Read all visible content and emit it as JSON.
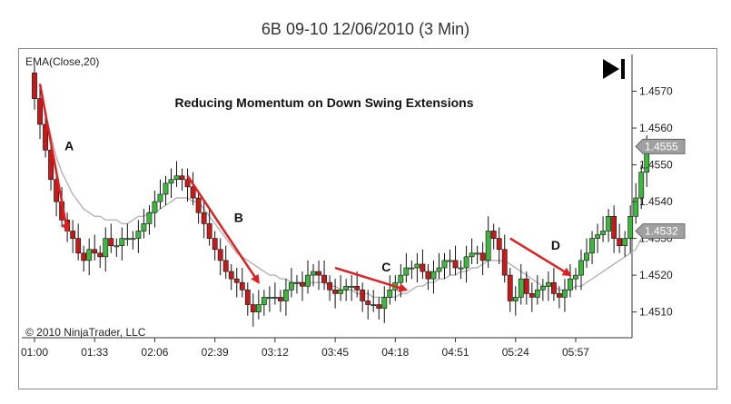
{
  "title": "6B 09-10  12/06/2010 (3 Min)",
  "indicator_label": "EMA(Close,20)",
  "chart_annotation": "Reducing Momentum on Down Swing Extensions",
  "copyright": "© 2010 NinjaTrader, LLC",
  "icons": {
    "playback": "skip-to-end-icon"
  },
  "colors": {
    "up": "#3db83d",
    "down": "#c41a1a",
    "arrow": "#e02020",
    "ema": "#b4b4b4",
    "badge": "#a0a0a0"
  },
  "chart_data": {
    "type": "candlestick",
    "x_tick_labels": [
      "01:00",
      "01:33",
      "02:06",
      "02:39",
      "03:12",
      "03:45",
      "04:18",
      "04:51",
      "05:24",
      "05:57"
    ],
    "y_tick_labels": [
      "1.4510",
      "1.4520",
      "1.4530",
      "1.4540",
      "1.4550",
      "1.4560",
      "1.4570"
    ],
    "y_ticks": [
      1.451,
      1.452,
      1.453,
      1.454,
      1.455,
      1.456,
      1.457
    ],
    "ylim": [
      1.4503,
      1.458
    ],
    "bars_per_label": 11,
    "price_badges": [
      {
        "text": "1.4555",
        "value": 1.4555
      },
      {
        "text": "1.4532",
        "value": 1.4532
      }
    ],
    "annotations": [
      {
        "label": "A",
        "bar_range": [
          1,
          6
        ],
        "price_range": [
          1.4572,
          1.4532
        ]
      },
      {
        "label": "B",
        "bar_range": [
          28,
          41
        ],
        "price_range": [
          1.4547,
          1.4518
        ]
      },
      {
        "label": "C",
        "bar_range": [
          55,
          68
        ],
        "price_range": [
          1.4522,
          1.4516
        ]
      },
      {
        "label": "D",
        "bar_range": [
          87,
          98
        ],
        "price_range": [
          1.453,
          1.452
        ]
      }
    ],
    "ema_series": {
      "name": "EMA(Close,20)",
      "start_bar": 1,
      "values": [
        1.457,
        1.4564,
        1.4558,
        1.4552,
        1.4548,
        1.4545,
        1.4542,
        1.454,
        1.4538,
        1.4537,
        1.4536,
        1.4536,
        1.4535,
        1.4535,
        1.4535,
        1.4534,
        1.4534,
        1.4535,
        1.4536,
        1.4536,
        1.4537,
        1.4537,
        1.4538,
        1.4539,
        1.454,
        1.4541,
        1.4541,
        1.4541,
        1.454,
        1.454,
        1.4538,
        1.4536,
        1.4534,
        1.4532,
        1.453,
        1.4528,
        1.4526,
        1.4525,
        1.4524,
        1.4523,
        1.4522,
        1.4521,
        1.452,
        1.452,
        1.4519,
        1.4519,
        1.4518,
        1.4518,
        1.4518,
        1.4518,
        1.4518,
        1.4518,
        1.4518,
        1.4517,
        1.4517,
        1.4516,
        1.4516,
        1.4516,
        1.4515,
        1.4515,
        1.4515,
        1.4514,
        1.4514,
        1.4514,
        1.4514,
        1.4514,
        1.4515,
        1.4515,
        1.4516,
        1.4517,
        1.4517,
        1.4518,
        1.4518,
        1.4519,
        1.4519,
        1.452,
        1.452,
        1.4521,
        1.4521,
        1.4522,
        1.4522,
        1.4523,
        1.4524,
        1.4524,
        1.4524,
        1.4524,
        1.4523,
        1.4522,
        1.4521,
        1.452,
        1.4519,
        1.4518,
        1.4517,
        1.4517,
        1.4517,
        1.4516,
        1.4516,
        1.4516,
        1.4517,
        1.4517,
        1.4518,
        1.4519,
        1.452,
        1.4521,
        1.4522,
        1.4523,
        1.4524,
        1.4525,
        1.4526,
        1.4527,
        1.453,
        1.4534
      ]
    },
    "close_series": {
      "name": "Close",
      "start_bar": 0,
      "values": [
        1.4568,
        1.4561,
        1.4554,
        1.4546,
        1.454,
        1.4535,
        1.4532,
        1.453,
        1.4526,
        1.4524,
        1.4527,
        1.4526,
        1.4525,
        1.453,
        1.4528,
        1.4528,
        1.453,
        1.453,
        1.453,
        1.4532,
        1.4534,
        1.4537,
        1.454,
        1.4542,
        1.4545,
        1.4546,
        1.4547,
        1.4546,
        1.4544,
        1.4541,
        1.4537,
        1.4534,
        1.453,
        1.4527,
        1.4524,
        1.4521,
        1.4519,
        1.4518,
        1.4516,
        1.4512,
        1.451,
        1.4512,
        1.4514,
        1.4514,
        1.4514,
        1.4513,
        1.4516,
        1.4518,
        1.4518,
        1.4517,
        1.452,
        1.4521,
        1.452,
        1.4518,
        1.4516,
        1.4515,
        1.4516,
        1.4517,
        1.4517,
        1.4516,
        1.4513,
        1.4512,
        1.4512,
        1.4511,
        1.4514,
        1.4516,
        1.4518,
        1.452,
        1.4522,
        1.4522,
        1.4523,
        1.4521,
        1.4519,
        1.4521,
        1.4522,
        1.4524,
        1.4524,
        1.4522,
        1.4522,
        1.4525,
        1.4526,
        1.4526,
        1.4524,
        1.4532,
        1.453,
        1.4527,
        1.452,
        1.4513,
        1.4514,
        1.4519,
        1.4515,
        1.4514,
        1.4516,
        1.4517,
        1.4518,
        1.4515,
        1.4514,
        1.4516,
        1.4519,
        1.452,
        1.4524,
        1.4526,
        1.453,
        1.4531,
        1.4532,
        1.4536,
        1.453,
        1.4528,
        1.453,
        1.4536,
        1.4541,
        1.4548,
        1.4555
      ]
    }
  }
}
